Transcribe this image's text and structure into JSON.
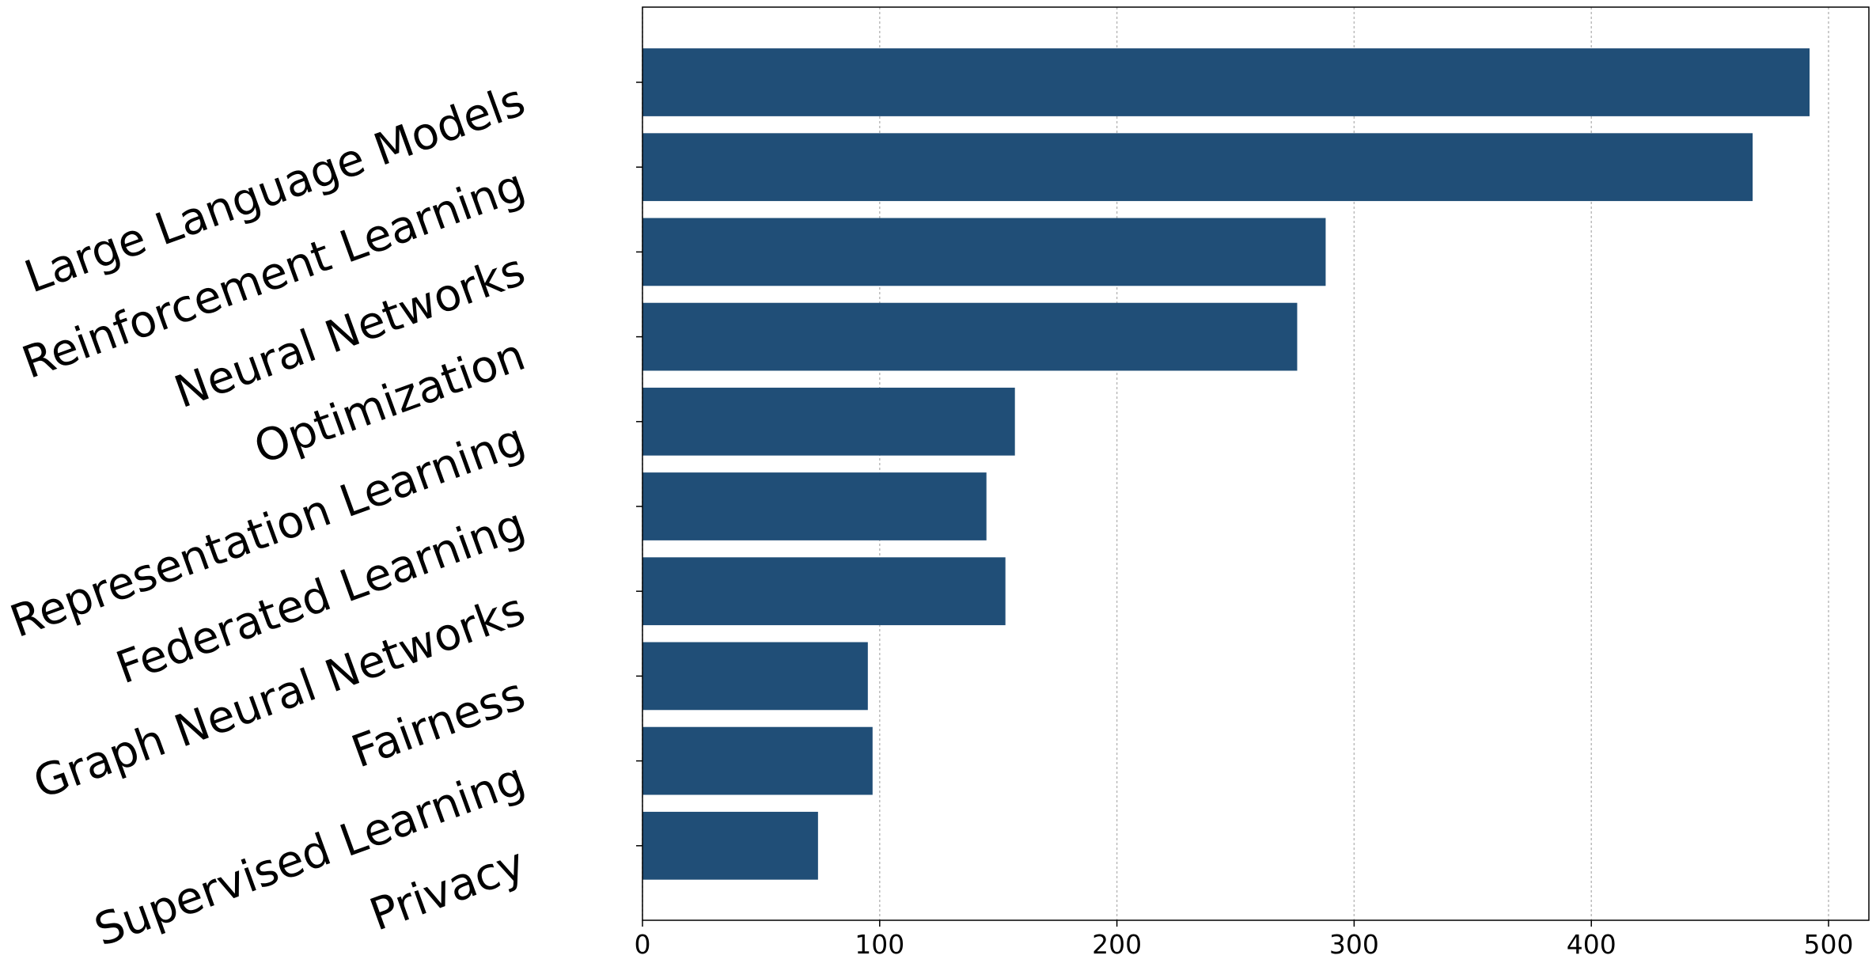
{
  "chart_data": {
    "type": "barh",
    "categories": [
      "Large Language Models",
      "Reinforcement Learning",
      "Neural Networks",
      "Optimization",
      "Representation Learning",
      "Federated Learning",
      "Graph Neural Networks",
      "Fairness",
      "Supervised Learning",
      "Privacy"
    ],
    "values": [
      492,
      468,
      288,
      276,
      157,
      145,
      153,
      95,
      97,
      74
    ],
    "color": "#204e77",
    "xlim": [
      0,
      517
    ],
    "xticks": [
      0,
      100,
      200,
      300,
      400,
      500
    ],
    "grid": true
  }
}
